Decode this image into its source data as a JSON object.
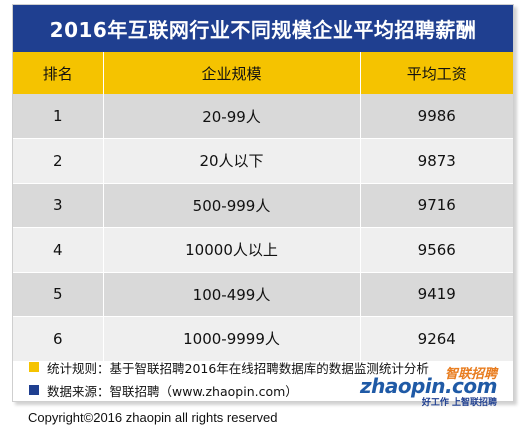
{
  "title": "2016年互联网行业不同规模企业平均招聘薪酬",
  "colors": {
    "title_bg": "#1f3f90",
    "header_bg": "#f5c300",
    "row_dark": "#d9d9d9",
    "row_light": "#efefef",
    "bullet_yellow": "#f5c300",
    "bullet_blue": "#1f3f90",
    "logo_orange": "#e87c1e",
    "logo_blue": "#1f5aa6"
  },
  "chart_data": {
    "type": "table",
    "title": "2016年互联网行业不同规模企业平均招聘薪酬",
    "columns": [
      "排名",
      "企业规模",
      "平均工资"
    ],
    "rows": [
      [
        "1",
        "20-99人",
        "9986"
      ],
      [
        "2",
        "20人以下",
        "9873"
      ],
      [
        "3",
        "500-999人",
        "9716"
      ],
      [
        "4",
        "10000人以上",
        "9566"
      ],
      [
        "5",
        "100-499人",
        "9419"
      ],
      [
        "6",
        "1000-9999人",
        "9264"
      ]
    ]
  },
  "notes": {
    "rule": "统计规则：基于智联招聘2016年在线招聘数据库的数据监测统计分析",
    "source": "数据来源：智联招聘（www.zhaopin.com）"
  },
  "logo": {
    "cn": "智联招聘",
    "en": "zhaopin.com",
    "slogan": "好工作  上智联招聘"
  },
  "copyright": "Copyright©2016 zhaopin all rights reserved"
}
